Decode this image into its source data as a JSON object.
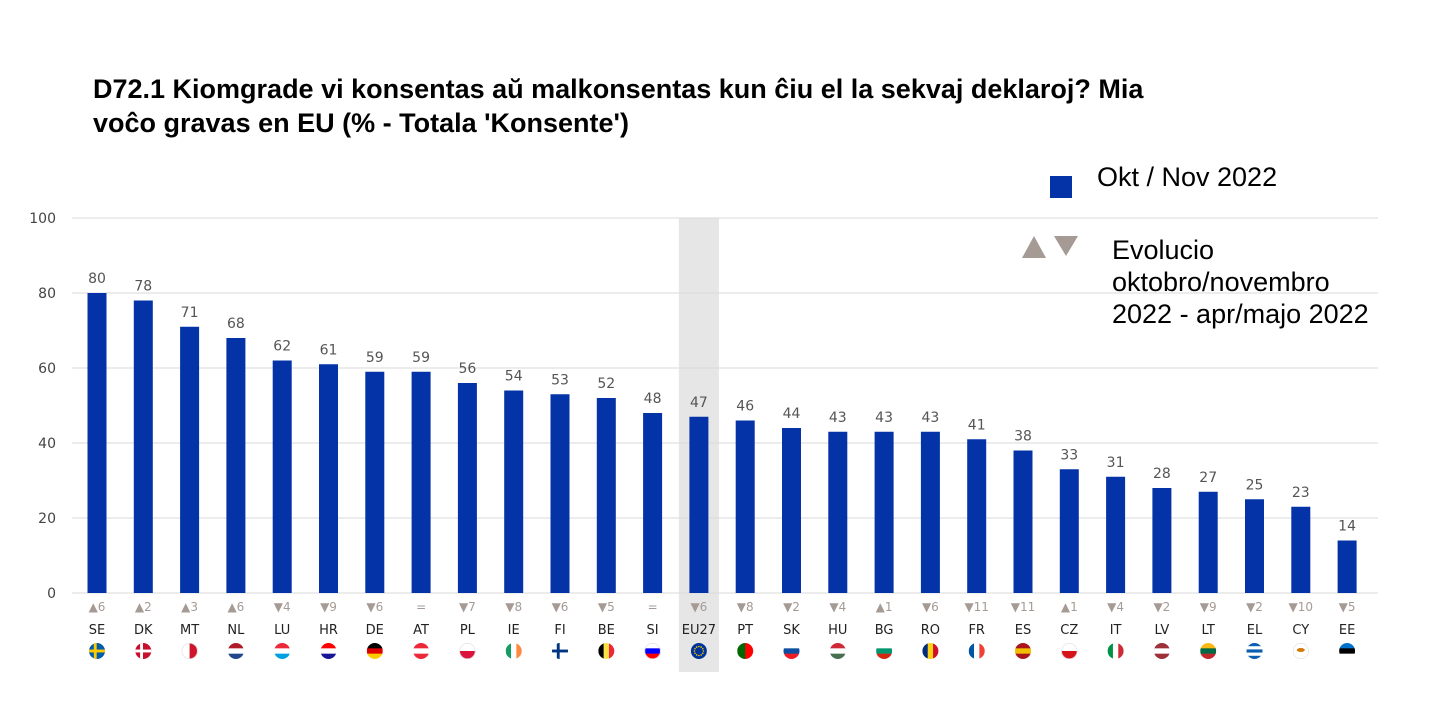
{
  "title": {
    "line1": "D72.1 Kiomgrade vi konsentas aŭ malkonsentas kun ĉiu el la sekvaj deklaroj? Mia",
    "line2": "voĉo gravas en EU (% - Totala 'Konsente')"
  },
  "legend": {
    "series_label": "Okt / Nov 2022",
    "evolution_line1": "Evolucio",
    "evolution_line2": "oktobro/novembro",
    "evolution_line3": "2022 - apr/majo 2022"
  },
  "colors": {
    "bar": "#0433a8",
    "highlight_band": "#e6e6e6",
    "grid": "#d9d9d9",
    "change_marker": "#a59a94"
  },
  "chart_data": {
    "type": "bar",
    "ylim": [
      0,
      100
    ],
    "yticks": [
      0,
      20,
      40,
      60,
      80,
      100
    ],
    "grid": true,
    "legend_position": "top-right",
    "highlight_category": "EU27",
    "categories": [
      "SE",
      "DK",
      "MT",
      "NL",
      "LU",
      "HR",
      "DE",
      "AT",
      "PL",
      "IE",
      "FI",
      "BE",
      "SI",
      "EU27",
      "PT",
      "SK",
      "HU",
      "BG",
      "RO",
      "FR",
      "ES",
      "CZ",
      "IT",
      "LV",
      "LT",
      "EL",
      "CY",
      "EE"
    ],
    "series": [
      {
        "name": "Okt / Nov 2022",
        "values": [
          80,
          78,
          71,
          68,
          62,
          61,
          59,
          59,
          56,
          54,
          53,
          52,
          48,
          47,
          46,
          44,
          43,
          43,
          43,
          41,
          38,
          33,
          31,
          28,
          27,
          25,
          23,
          14
        ]
      }
    ],
    "changes": [
      "▲6",
      "▲2",
      "▲3",
      "▲6",
      "▼4",
      "▼9",
      "▼6",
      "=",
      "▼7",
      "▼8",
      "▼6",
      "▼5",
      "=",
      "▼6",
      "▼8",
      "▼2",
      "▼4",
      "▲1",
      "▼6",
      "▼11",
      "▼11",
      "▲1",
      "▼4",
      "▼2",
      "▼9",
      "▼2",
      "▼10",
      "▼5"
    ],
    "flags": [
      {
        "code": "SE",
        "colors": [
          "#005bab",
          "#fecb00"
        ],
        "layout": "nordic"
      },
      {
        "code": "DK",
        "colors": [
          "#c8102e",
          "#ffffff"
        ],
        "layout": "nordic"
      },
      {
        "code": "MT",
        "colors": [
          "#ffffff",
          "#cf142b"
        ],
        "layout": "vertical"
      },
      {
        "code": "NL",
        "colors": [
          "#ae1c28",
          "#ffffff",
          "#21468b"
        ],
        "layout": "horizontal"
      },
      {
        "code": "LU",
        "colors": [
          "#ed2939",
          "#ffffff",
          "#00a1de"
        ],
        "layout": "horizontal"
      },
      {
        "code": "HR",
        "colors": [
          "#ff0000",
          "#ffffff",
          "#171796"
        ],
        "layout": "horizontal"
      },
      {
        "code": "DE",
        "colors": [
          "#000000",
          "#dd0000",
          "#ffce00"
        ],
        "layout": "horizontal"
      },
      {
        "code": "AT",
        "colors": [
          "#ed2939",
          "#ffffff",
          "#ed2939"
        ],
        "layout": "horizontal"
      },
      {
        "code": "PL",
        "colors": [
          "#ffffff",
          "#dc143c"
        ],
        "layout": "horizontal"
      },
      {
        "code": "IE",
        "colors": [
          "#169b62",
          "#ffffff",
          "#ff883e"
        ],
        "layout": "vertical"
      },
      {
        "code": "FI",
        "colors": [
          "#ffffff",
          "#003580"
        ],
        "layout": "nordic"
      },
      {
        "code": "BE",
        "colors": [
          "#000000",
          "#fae042",
          "#ed2939"
        ],
        "layout": "vertical"
      },
      {
        "code": "SI",
        "colors": [
          "#ffffff",
          "#0000ff",
          "#ff0000"
        ],
        "layout": "horizontal"
      },
      {
        "code": "EU27",
        "colors": [
          "#003399",
          "#ffcc00"
        ],
        "layout": "eu"
      },
      {
        "code": "PT",
        "colors": [
          "#006600",
          "#ff0000"
        ],
        "layout": "vertical"
      },
      {
        "code": "SK",
        "colors": [
          "#ffffff",
          "#0b4ea2",
          "#ee1c25"
        ],
        "layout": "horizontal"
      },
      {
        "code": "HU",
        "colors": [
          "#ce2939",
          "#ffffff",
          "#477050"
        ],
        "layout": "horizontal"
      },
      {
        "code": "BG",
        "colors": [
          "#ffffff",
          "#00966e",
          "#d62612"
        ],
        "layout": "horizontal"
      },
      {
        "code": "RO",
        "colors": [
          "#002b7f",
          "#fcd116",
          "#ce1126"
        ],
        "layout": "vertical"
      },
      {
        "code": "FR",
        "colors": [
          "#0055a4",
          "#ffffff",
          "#ef4135"
        ],
        "layout": "vertical"
      },
      {
        "code": "ES",
        "colors": [
          "#aa151b",
          "#f1bf00",
          "#aa151b"
        ],
        "layout": "horizontal"
      },
      {
        "code": "CZ",
        "colors": [
          "#ffffff",
          "#d7141a"
        ],
        "layout": "horizontal"
      },
      {
        "code": "IT",
        "colors": [
          "#009246",
          "#ffffff",
          "#ce2b37"
        ],
        "layout": "vertical"
      },
      {
        "code": "LV",
        "colors": [
          "#9e3039",
          "#ffffff",
          "#9e3039"
        ],
        "layout": "horizontal"
      },
      {
        "code": "LT",
        "colors": [
          "#fdb913",
          "#006a44",
          "#c1272d"
        ],
        "layout": "horizontal"
      },
      {
        "code": "EL",
        "colors": [
          "#0d5eaf",
          "#ffffff",
          "#0d5eaf",
          "#ffffff",
          "#0d5eaf"
        ],
        "layout": "horizontal"
      },
      {
        "code": "CY",
        "colors": [
          "#ffffff",
          "#d57800"
        ],
        "layout": "cyprus"
      },
      {
        "code": "EE",
        "colors": [
          "#0072ce",
          "#000000",
          "#ffffff"
        ],
        "layout": "horizontal"
      }
    ]
  }
}
